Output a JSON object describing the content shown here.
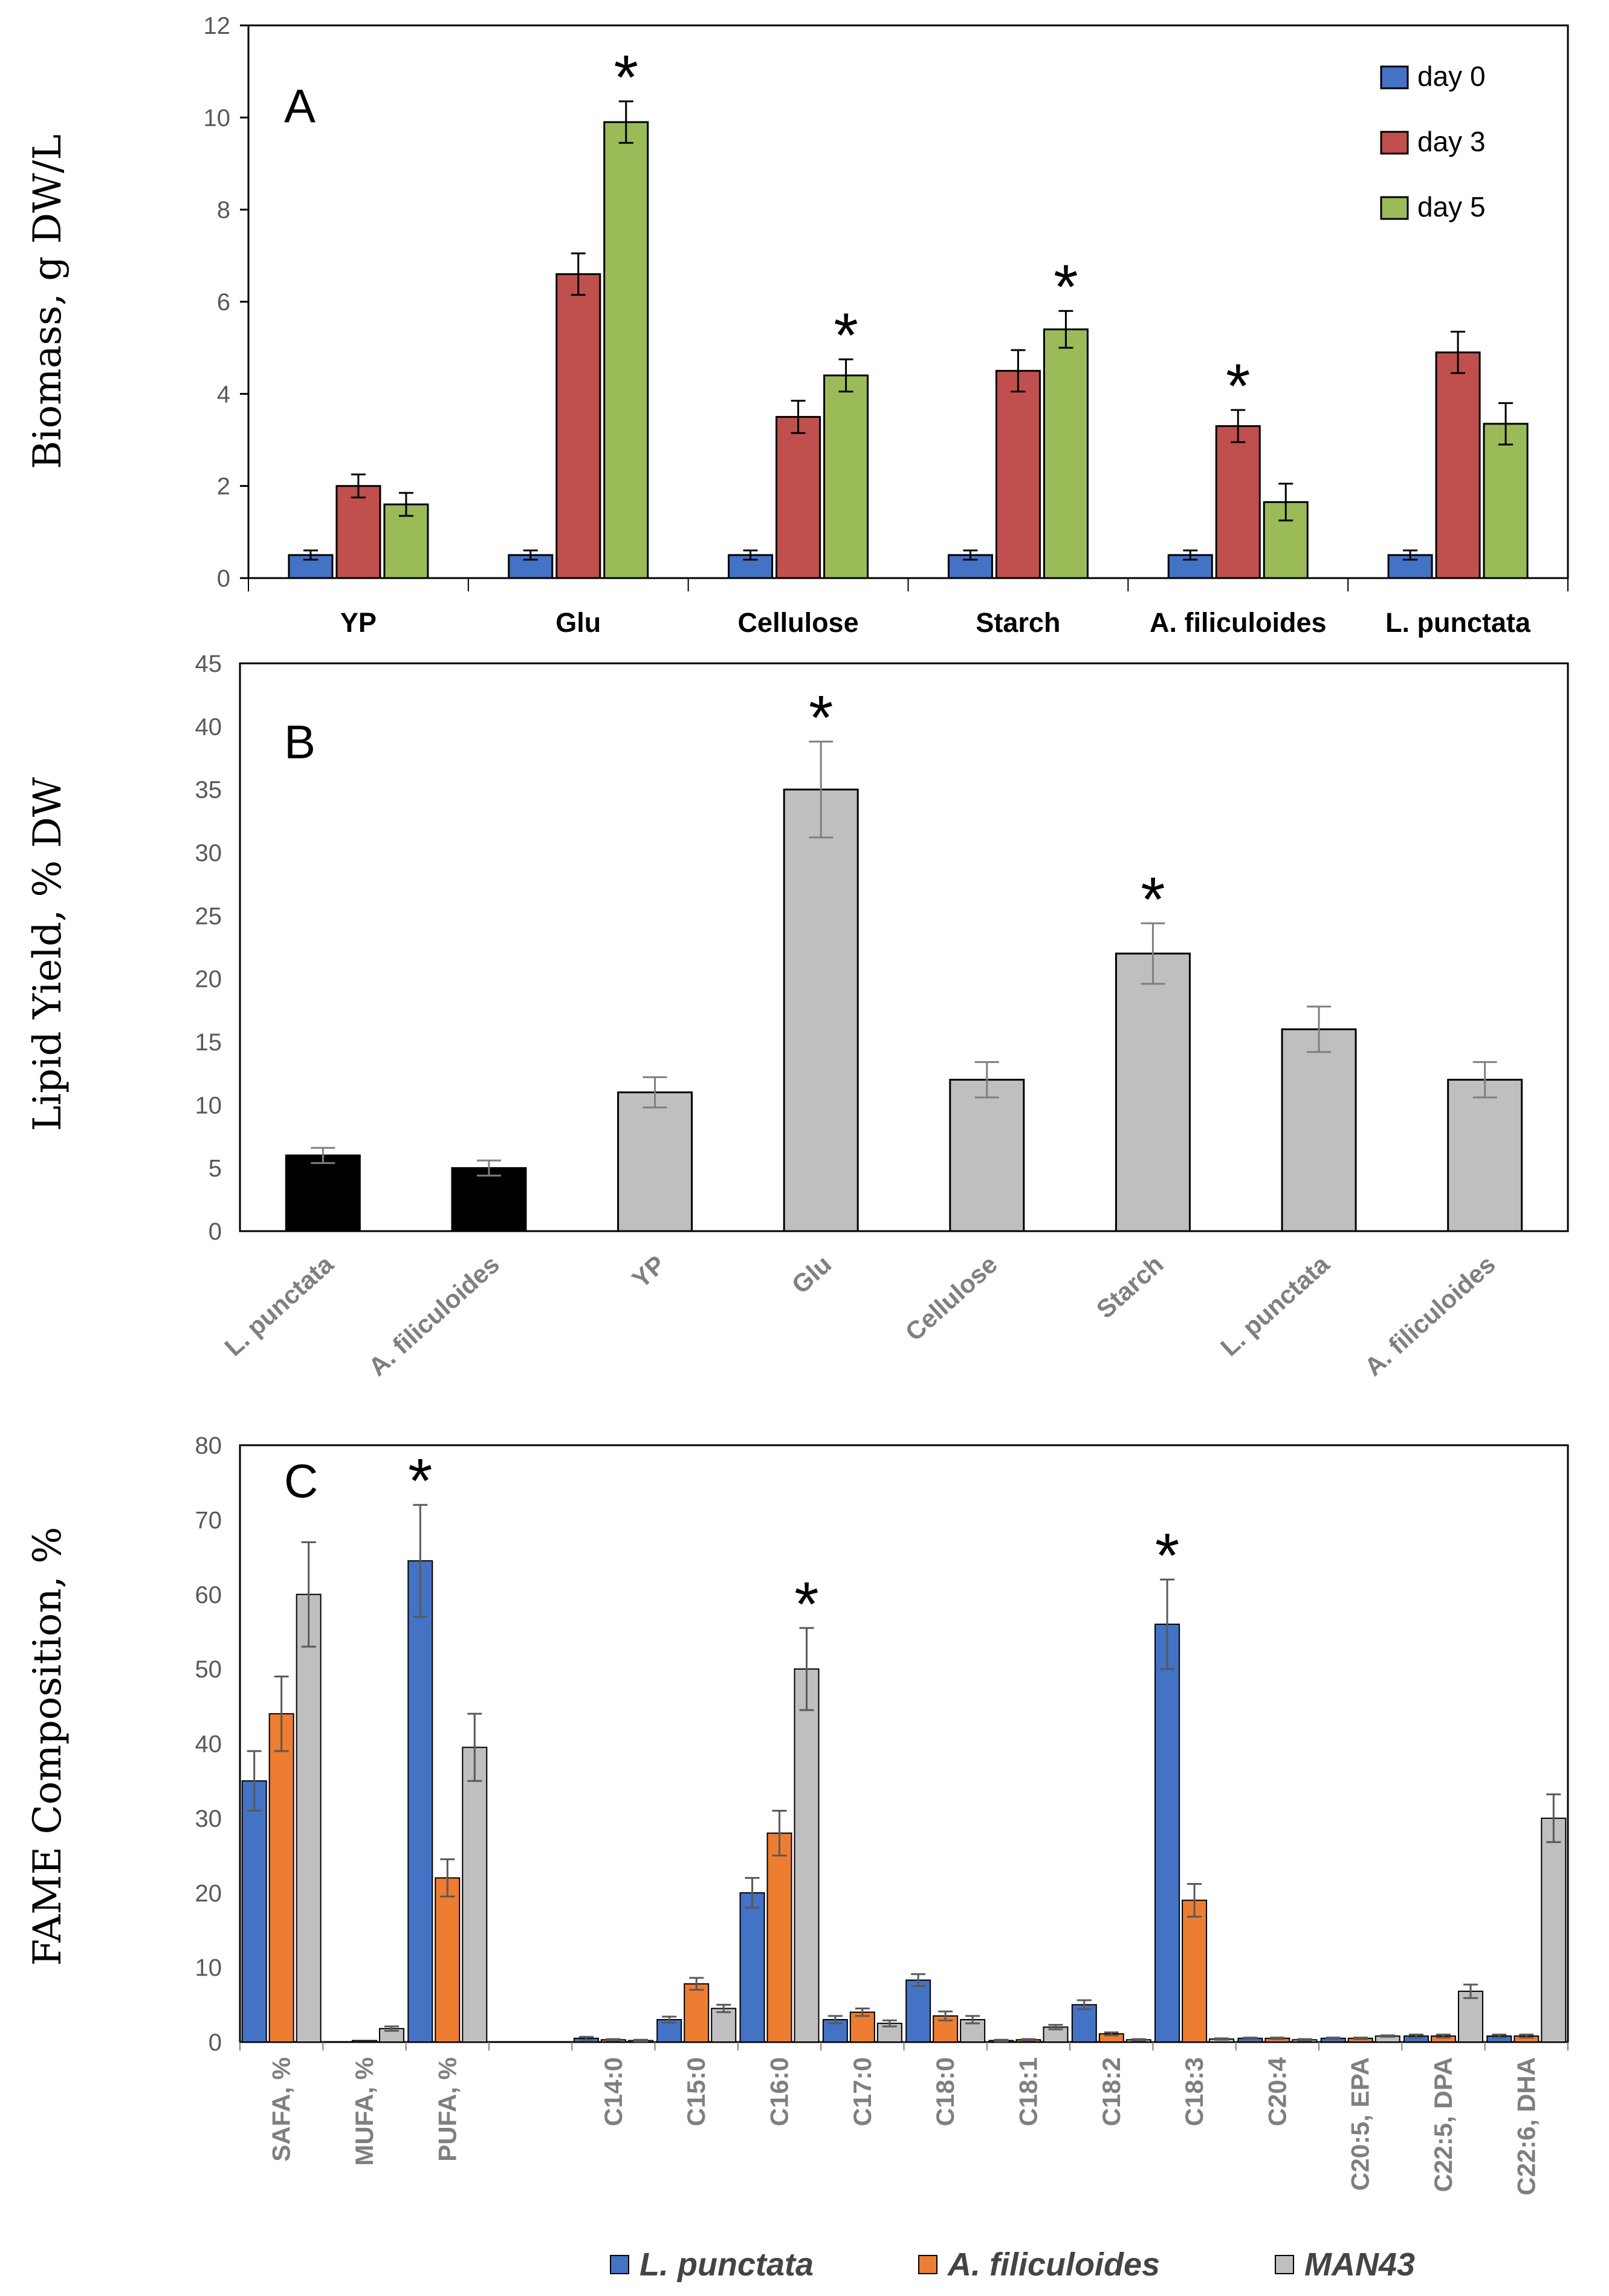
{
  "figure": {
    "colors": {
      "day0": "#4472c4",
      "day3": "#c0504d",
      "day5": "#9bbb59",
      "gray": "#bfbfbf",
      "black": "#000000",
      "orange": "#ed7d31",
      "blue": "#4472c4"
    }
  },
  "chart_data": [
    {
      "id": "A",
      "type": "bar",
      "panel_label": "A",
      "ylabel": "Biomass, g DW/L",
      "ylim": [
        0,
        12
      ],
      "yticks": [
        "0",
        "2",
        "4",
        "6",
        "8",
        "10",
        "12"
      ],
      "categories": [
        "YP",
        "Glu",
        "Cellulose",
        "Starch",
        "A. filiculoides",
        "L. punctata"
      ],
      "series": [
        {
          "name": "day 0",
          "color": "#4472c4",
          "values": [
            0.5,
            0.5,
            0.5,
            0.5,
            0.5,
            0.5
          ],
          "errors": [
            0.1,
            0.1,
            0.1,
            0.1,
            0.1,
            0.1
          ]
        },
        {
          "name": "day 3",
          "color": "#c0504d",
          "values": [
            2.0,
            6.6,
            3.5,
            4.5,
            3.3,
            4.9
          ],
          "errors": [
            0.25,
            0.45,
            0.35,
            0.45,
            0.35,
            0.45
          ]
        },
        {
          "name": "day 5",
          "color": "#9bbb59",
          "values": [
            1.6,
            9.9,
            4.4,
            5.4,
            1.65,
            3.35
          ],
          "errors": [
            0.25,
            0.45,
            0.35,
            0.4,
            0.4,
            0.45
          ]
        }
      ],
      "legend": [
        "day 0",
        "day 3",
        "day 5"
      ],
      "stars": [
        {
          "category": "Glu",
          "series": "day 5",
          "text": "*"
        },
        {
          "category": "Cellulose",
          "series": "day 5",
          "text": "*"
        },
        {
          "category": "Starch",
          "series": "day 5",
          "text": "*"
        },
        {
          "category": "A. filiculoides",
          "series": "day 3",
          "text": "*"
        }
      ]
    },
    {
      "id": "B",
      "type": "bar",
      "panel_label": "B",
      "ylabel": "Lipid Yield, % DW",
      "ylim": [
        0,
        45
      ],
      "yticks": [
        "0",
        "5",
        "10",
        "15",
        "20",
        "25",
        "30",
        "35",
        "40",
        "45"
      ],
      "categories": [
        "L. punctata",
        "A. filiculoides",
        "YP",
        "Glu",
        "Cellulose",
        "Starch",
        "L. punctata",
        "A. filiculoides"
      ],
      "values": [
        6,
        5,
        11,
        35,
        12,
        22,
        16,
        12
      ],
      "errors": [
        0.6,
        0.6,
        1.2,
        3.8,
        1.4,
        2.4,
        1.8,
        1.4
      ],
      "colors": [
        "#000000",
        "#000000",
        "#bfbfbf",
        "#bfbfbf",
        "#bfbfbf",
        "#bfbfbf",
        "#bfbfbf",
        "#bfbfbf"
      ],
      "stars": [
        {
          "index": 3,
          "text": "*"
        },
        {
          "index": 5,
          "text": "*"
        }
      ]
    },
    {
      "id": "C",
      "type": "bar",
      "panel_label": "C",
      "ylabel": "FAME Composition, %",
      "ylim": [
        0,
        80
      ],
      "yticks": [
        "0",
        "10",
        "20",
        "30",
        "40",
        "50",
        "60",
        "70",
        "80"
      ],
      "categories": [
        "SAFA, %",
        "MUFA, %",
        "PUFA, %",
        "",
        "C14:0",
        "C15:0",
        "C16:0",
        "C17:0",
        "C18:0",
        "C18:1",
        "C18:2",
        "C18:3",
        "C20:4",
        "C20:5, EPA",
        "C22:5, DPA",
        "C22:6, DHA"
      ],
      "series": [
        {
          "name": "L. punctata",
          "color": "#4472c4",
          "values": [
            35,
            0,
            64.5,
            0,
            0.5,
            3,
            20,
            3,
            8.3,
            0.2,
            5,
            56,
            0.5,
            0.5,
            0.8,
            0.8
          ],
          "errors": [
            4,
            0,
            7.5,
            0,
            0.2,
            0.4,
            2,
            0.5,
            0.8,
            0.1,
            0.6,
            6,
            0.1,
            0.1,
            0.2,
            0.2
          ]
        },
        {
          "name": "A. filiculoides",
          "color": "#ed7d31",
          "values": [
            44,
            0.2,
            22,
            0,
            0.3,
            7.8,
            28,
            4,
            3.5,
            0.3,
            1.1,
            19,
            0.5,
            0.5,
            0.8,
            0.8
          ],
          "errors": [
            5,
            0,
            2.5,
            0,
            0.1,
            0.8,
            3,
            0.5,
            0.6,
            0.1,
            0.2,
            2.2,
            0.1,
            0.1,
            0.2,
            0.2
          ]
        },
        {
          "name": "MAN43",
          "color": "#bfbfbf",
          "values": [
            60,
            1.8,
            39.5,
            0,
            0.2,
            4.5,
            50,
            2.5,
            3,
            2,
            0.3,
            0.4,
            0.3,
            0.8,
            6.8,
            30
          ],
          "errors": [
            7,
            0.3,
            4.5,
            0,
            0.1,
            0.5,
            5.5,
            0.4,
            0.5,
            0.3,
            0.1,
            0.1,
            0.1,
            0.1,
            0.9,
            3.2
          ]
        }
      ],
      "legend": [
        "L. punctata",
        "A. filiculoides",
        "MAN43"
      ],
      "stars": [
        {
          "category": "PUFA, %",
          "series": "L. punctata",
          "text": "*"
        },
        {
          "category": "C16:0",
          "series": "MAN43",
          "text": "*"
        },
        {
          "category": "C18:3",
          "series": "L. punctata",
          "text": "*"
        }
      ]
    }
  ]
}
